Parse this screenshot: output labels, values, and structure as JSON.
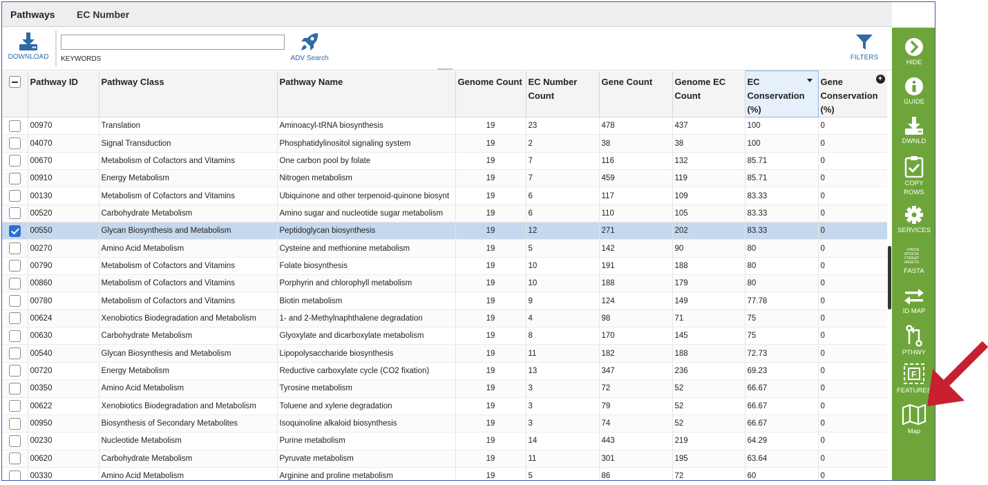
{
  "tabs": [
    {
      "label": "Pathways"
    },
    {
      "label": "EC Number"
    }
  ],
  "toolbar": {
    "download_label": "DOWNLOAD",
    "keywords_label": "KEYWORDS",
    "keywords_value": "",
    "adv_search_label": "ADV Search",
    "filters_label": "FILTERS"
  },
  "columns": [
    "Pathway ID",
    "Pathway Class",
    "Pathway Name",
    "Genome Count",
    "EC Number Count",
    "Gene Count",
    "Genome EC Count",
    "EC Conservation (%)",
    "Gene Conservation (%)"
  ],
  "sorted_column": "EC Conservation (%)",
  "rows": [
    {
      "id": "00970",
      "cls": "Translation",
      "name": "Aminoacyl-tRNA biosynthesis",
      "genome": "19",
      "ec": "23",
      "gene": "478",
      "gec": "437",
      "ecc": "100",
      "gc": "0",
      "checked": false
    },
    {
      "id": "04070",
      "cls": "Signal Transduction",
      "name": "Phosphatidylinositol signaling system",
      "genome": "19",
      "ec": "2",
      "gene": "38",
      "gec": "38",
      "ecc": "100",
      "gc": "0",
      "checked": false
    },
    {
      "id": "00670",
      "cls": "Metabolism of Cofactors and Vitamins",
      "name": "One carbon pool by folate",
      "genome": "19",
      "ec": "7",
      "gene": "116",
      "gec": "132",
      "ecc": "85.71",
      "gc": "0",
      "checked": false
    },
    {
      "id": "00910",
      "cls": "Energy Metabolism",
      "name": "Nitrogen metabolism",
      "genome": "19",
      "ec": "7",
      "gene": "459",
      "gec": "119",
      "ecc": "85.71",
      "gc": "0",
      "checked": false
    },
    {
      "id": "00130",
      "cls": "Metabolism of Cofactors and Vitamins",
      "name": "Ubiquinone and other terpenoid-quinone biosynt",
      "genome": "19",
      "ec": "6",
      "gene": "117",
      "gec": "109",
      "ecc": "83.33",
      "gc": "0",
      "checked": false
    },
    {
      "id": "00520",
      "cls": "Carbohydrate Metabolism",
      "name": "Amino sugar and nucleotide sugar metabolism",
      "genome": "19",
      "ec": "6",
      "gene": "110",
      "gec": "105",
      "ecc": "83.33",
      "gc": "0",
      "checked": false
    },
    {
      "id": "00550",
      "cls": "Glycan Biosynthesis and Metabolism",
      "name": "Peptidoglycan biosynthesis",
      "genome": "19",
      "ec": "12",
      "gene": "271",
      "gec": "202",
      "ecc": "83.33",
      "gc": "0",
      "checked": true
    },
    {
      "id": "00270",
      "cls": "Amino Acid Metabolism",
      "name": "Cysteine and methionine metabolism",
      "genome": "19",
      "ec": "5",
      "gene": "142",
      "gec": "90",
      "ecc": "80",
      "gc": "0",
      "checked": false
    },
    {
      "id": "00790",
      "cls": "Metabolism of Cofactors and Vitamins",
      "name": "Folate biosynthesis",
      "genome": "19",
      "ec": "10",
      "gene": "191",
      "gec": "188",
      "ecc": "80",
      "gc": "0",
      "checked": false
    },
    {
      "id": "00860",
      "cls": "Metabolism of Cofactors and Vitamins",
      "name": "Porphyrin and chlorophyll metabolism",
      "genome": "19",
      "ec": "10",
      "gene": "188",
      "gec": "179",
      "ecc": "80",
      "gc": "0",
      "checked": false
    },
    {
      "id": "00780",
      "cls": "Metabolism of Cofactors and Vitamins",
      "name": "Biotin metabolism",
      "genome": "19",
      "ec": "9",
      "gene": "124",
      "gec": "149",
      "ecc": "77.78",
      "gc": "0",
      "checked": false
    },
    {
      "id": "00624",
      "cls": "Xenobiotics Biodegradation and Metabolism",
      "name": "1- and 2-Methylnaphthalene degradation",
      "genome": "19",
      "ec": "4",
      "gene": "98",
      "gec": "71",
      "ecc": "75",
      "gc": "0",
      "checked": false
    },
    {
      "id": "00630",
      "cls": "Carbohydrate Metabolism",
      "name": "Glyoxylate and dicarboxylate metabolism",
      "genome": "19",
      "ec": "8",
      "gene": "170",
      "gec": "145",
      "ecc": "75",
      "gc": "0",
      "checked": false
    },
    {
      "id": "00540",
      "cls": "Glycan Biosynthesis and Metabolism",
      "name": "Lipopolysaccharide biosynthesis",
      "genome": "19",
      "ec": "11",
      "gene": "182",
      "gec": "188",
      "ecc": "72.73",
      "gc": "0",
      "checked": false
    },
    {
      "id": "00720",
      "cls": "Energy Metabolism",
      "name": "Reductive carboxylate cycle (CO2 fixation)",
      "genome": "19",
      "ec": "13",
      "gene": "347",
      "gec": "236",
      "ecc": "69.23",
      "gc": "0",
      "checked": false
    },
    {
      "id": "00350",
      "cls": "Amino Acid Metabolism",
      "name": "Tyrosine metabolism",
      "genome": "19",
      "ec": "3",
      "gene": "72",
      "gec": "52",
      "ecc": "66.67",
      "gc": "0",
      "checked": false
    },
    {
      "id": "00622",
      "cls": "Xenobiotics Biodegradation and Metabolism",
      "name": "Toluene and xylene degradation",
      "genome": "19",
      "ec": "3",
      "gene": "79",
      "gec": "52",
      "ecc": "66.67",
      "gc": "0",
      "checked": false
    },
    {
      "id": "00950",
      "cls": "Biosynthesis of Secondary Metabolites",
      "name": "Isoquinoline alkaloid biosynthesis",
      "genome": "19",
      "ec": "3",
      "gene": "74",
      "gec": "52",
      "ecc": "66.67",
      "gc": "0",
      "checked": false
    },
    {
      "id": "00230",
      "cls": "Nucleotide Metabolism",
      "name": "Purine metabolism",
      "genome": "19",
      "ec": "14",
      "gene": "443",
      "gec": "219",
      "ecc": "64.29",
      "gc": "0",
      "checked": false
    },
    {
      "id": "00620",
      "cls": "Carbohydrate Metabolism",
      "name": "Pyruvate metabolism",
      "genome": "19",
      "ec": "11",
      "gene": "301",
      "gec": "195",
      "ecc": "63.64",
      "gc": "0",
      "checked": false
    },
    {
      "id": "00330",
      "cls": "Amino Acid Metabolism",
      "name": "Arginine and proline metabolism",
      "genome": "19",
      "ec": "5",
      "gene": "86",
      "gec": "72",
      "ecc": "60",
      "gc": "0",
      "checked": false
    }
  ],
  "sidebar": {
    "hide": "HIDE",
    "guide": "GUIDE",
    "dwnld": "DWNLD",
    "copy_rows": "COPY ROWS",
    "services": "SERVICES",
    "fasta": "FASTA",
    "id_map": "ID MAP",
    "pthwy": "PTHWY",
    "features": "FEATURES",
    "map": "Map"
  },
  "colors": {
    "sidebar_green": "#6ea53a",
    "link_blue": "#2f6aa5",
    "selected_row": "#c5d8ed",
    "annotation_arrow": "#c8202f"
  }
}
